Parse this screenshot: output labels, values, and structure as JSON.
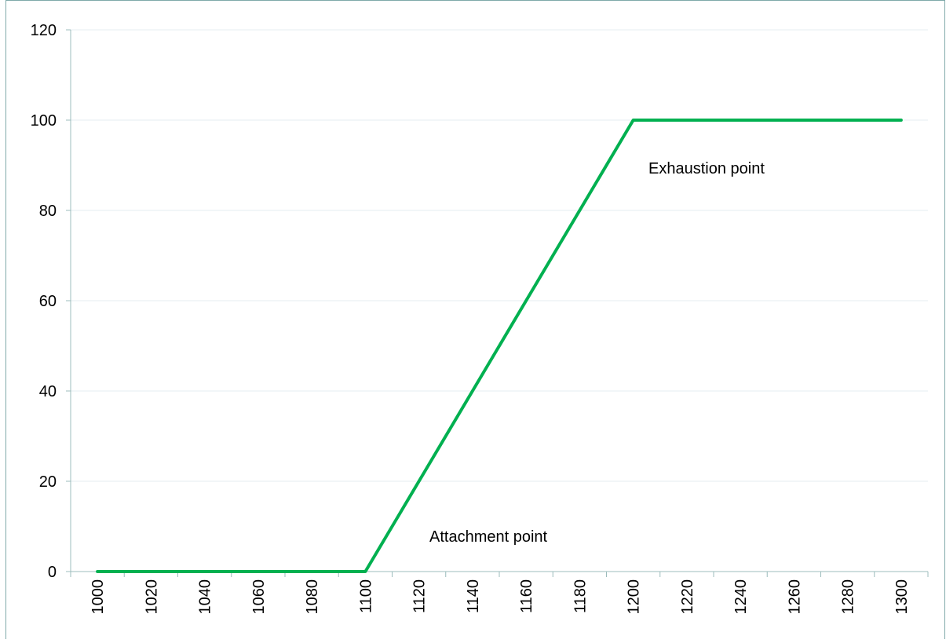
{
  "chart_data": {
    "type": "line",
    "categories": [
      "1000",
      "1020",
      "1040",
      "1060",
      "1080",
      "1100",
      "1120",
      "1140",
      "1160",
      "1180",
      "1200",
      "1220",
      "1240",
      "1260",
      "1280",
      "1300"
    ],
    "series": [
      {
        "color": "#00b050",
        "values": [
          0,
          0,
          0,
          0,
          0,
          0,
          20,
          40,
          60,
          80,
          100,
          100,
          100,
          100,
          100,
          100
        ]
      }
    ],
    "ylim": [
      0,
      120
    ],
    "yticks": [
      0,
      20,
      40,
      60,
      80,
      100,
      120
    ],
    "grid": true,
    "annotations": [
      {
        "text": "Exhaustion point"
      },
      {
        "text": "Attachment point"
      }
    ]
  }
}
